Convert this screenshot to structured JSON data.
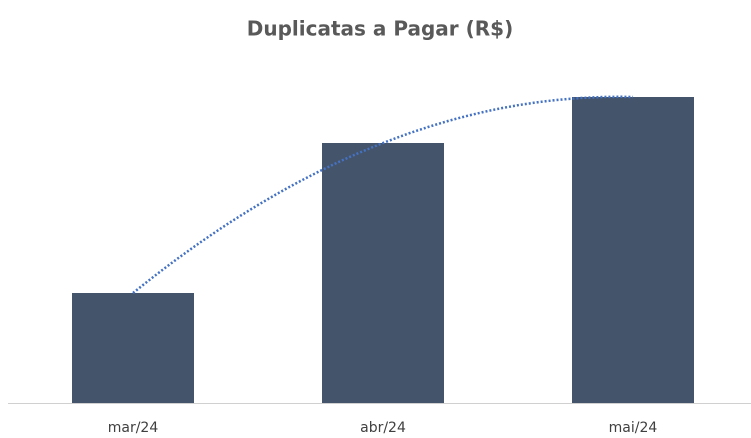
{
  "chart_data": {
    "type": "bar",
    "title": "Duplicatas a Pagar (R$)",
    "categories": [
      "mar/24",
      "abr/24",
      "mai/24"
    ],
    "values": [
      110,
      260,
      306
    ],
    "color": "#44546a",
    "trendline": {
      "type": "polynomial",
      "order": 2,
      "color": "#4472c4",
      "style": "dotted"
    }
  }
}
